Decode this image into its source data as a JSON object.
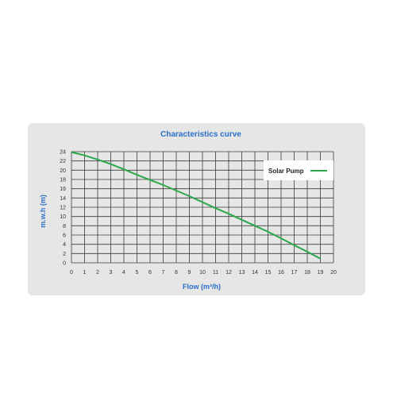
{
  "chart_data": {
    "type": "line",
    "title": "Characteristics curve",
    "xlabel": "Flow (m³/h)",
    "ylabel": "m.w.h (m)",
    "xlim": [
      0,
      20
    ],
    "ylim": [
      0,
      24
    ],
    "x_ticks": [
      "0",
      "1",
      "2",
      "3",
      "4",
      "5",
      "6",
      "7",
      "8",
      "9",
      "10",
      "11",
      "12",
      "13",
      "14",
      "15",
      "16",
      "17",
      "18",
      "19",
      "20"
    ],
    "y_ticks": [
      "0",
      "2",
      "4",
      "6",
      "8",
      "10",
      "12",
      "14",
      "16",
      "18",
      "20",
      "22",
      "24"
    ],
    "grid": true,
    "legend_position": "top-right",
    "series": [
      {
        "name": "Solar Pump",
        "color": "#2aa84a",
        "x": [
          0,
          1,
          2,
          3,
          4,
          5,
          6,
          7,
          8,
          9,
          10,
          11,
          12,
          13,
          14,
          15,
          16,
          17,
          18,
          19
        ],
        "y": [
          23.9,
          23.2,
          22.3,
          21.3,
          20.2,
          19.0,
          17.9,
          16.8,
          15.6,
          14.4,
          13.1,
          11.8,
          10.6,
          9.3,
          8.0,
          6.7,
          5.3,
          3.8,
          2.4,
          0.9
        ]
      }
    ]
  },
  "colors": {
    "title": "#2a6fc9",
    "axis_label": "#2a6fc9",
    "grid": "#3a3a3a",
    "card": "#e6e6e6"
  }
}
